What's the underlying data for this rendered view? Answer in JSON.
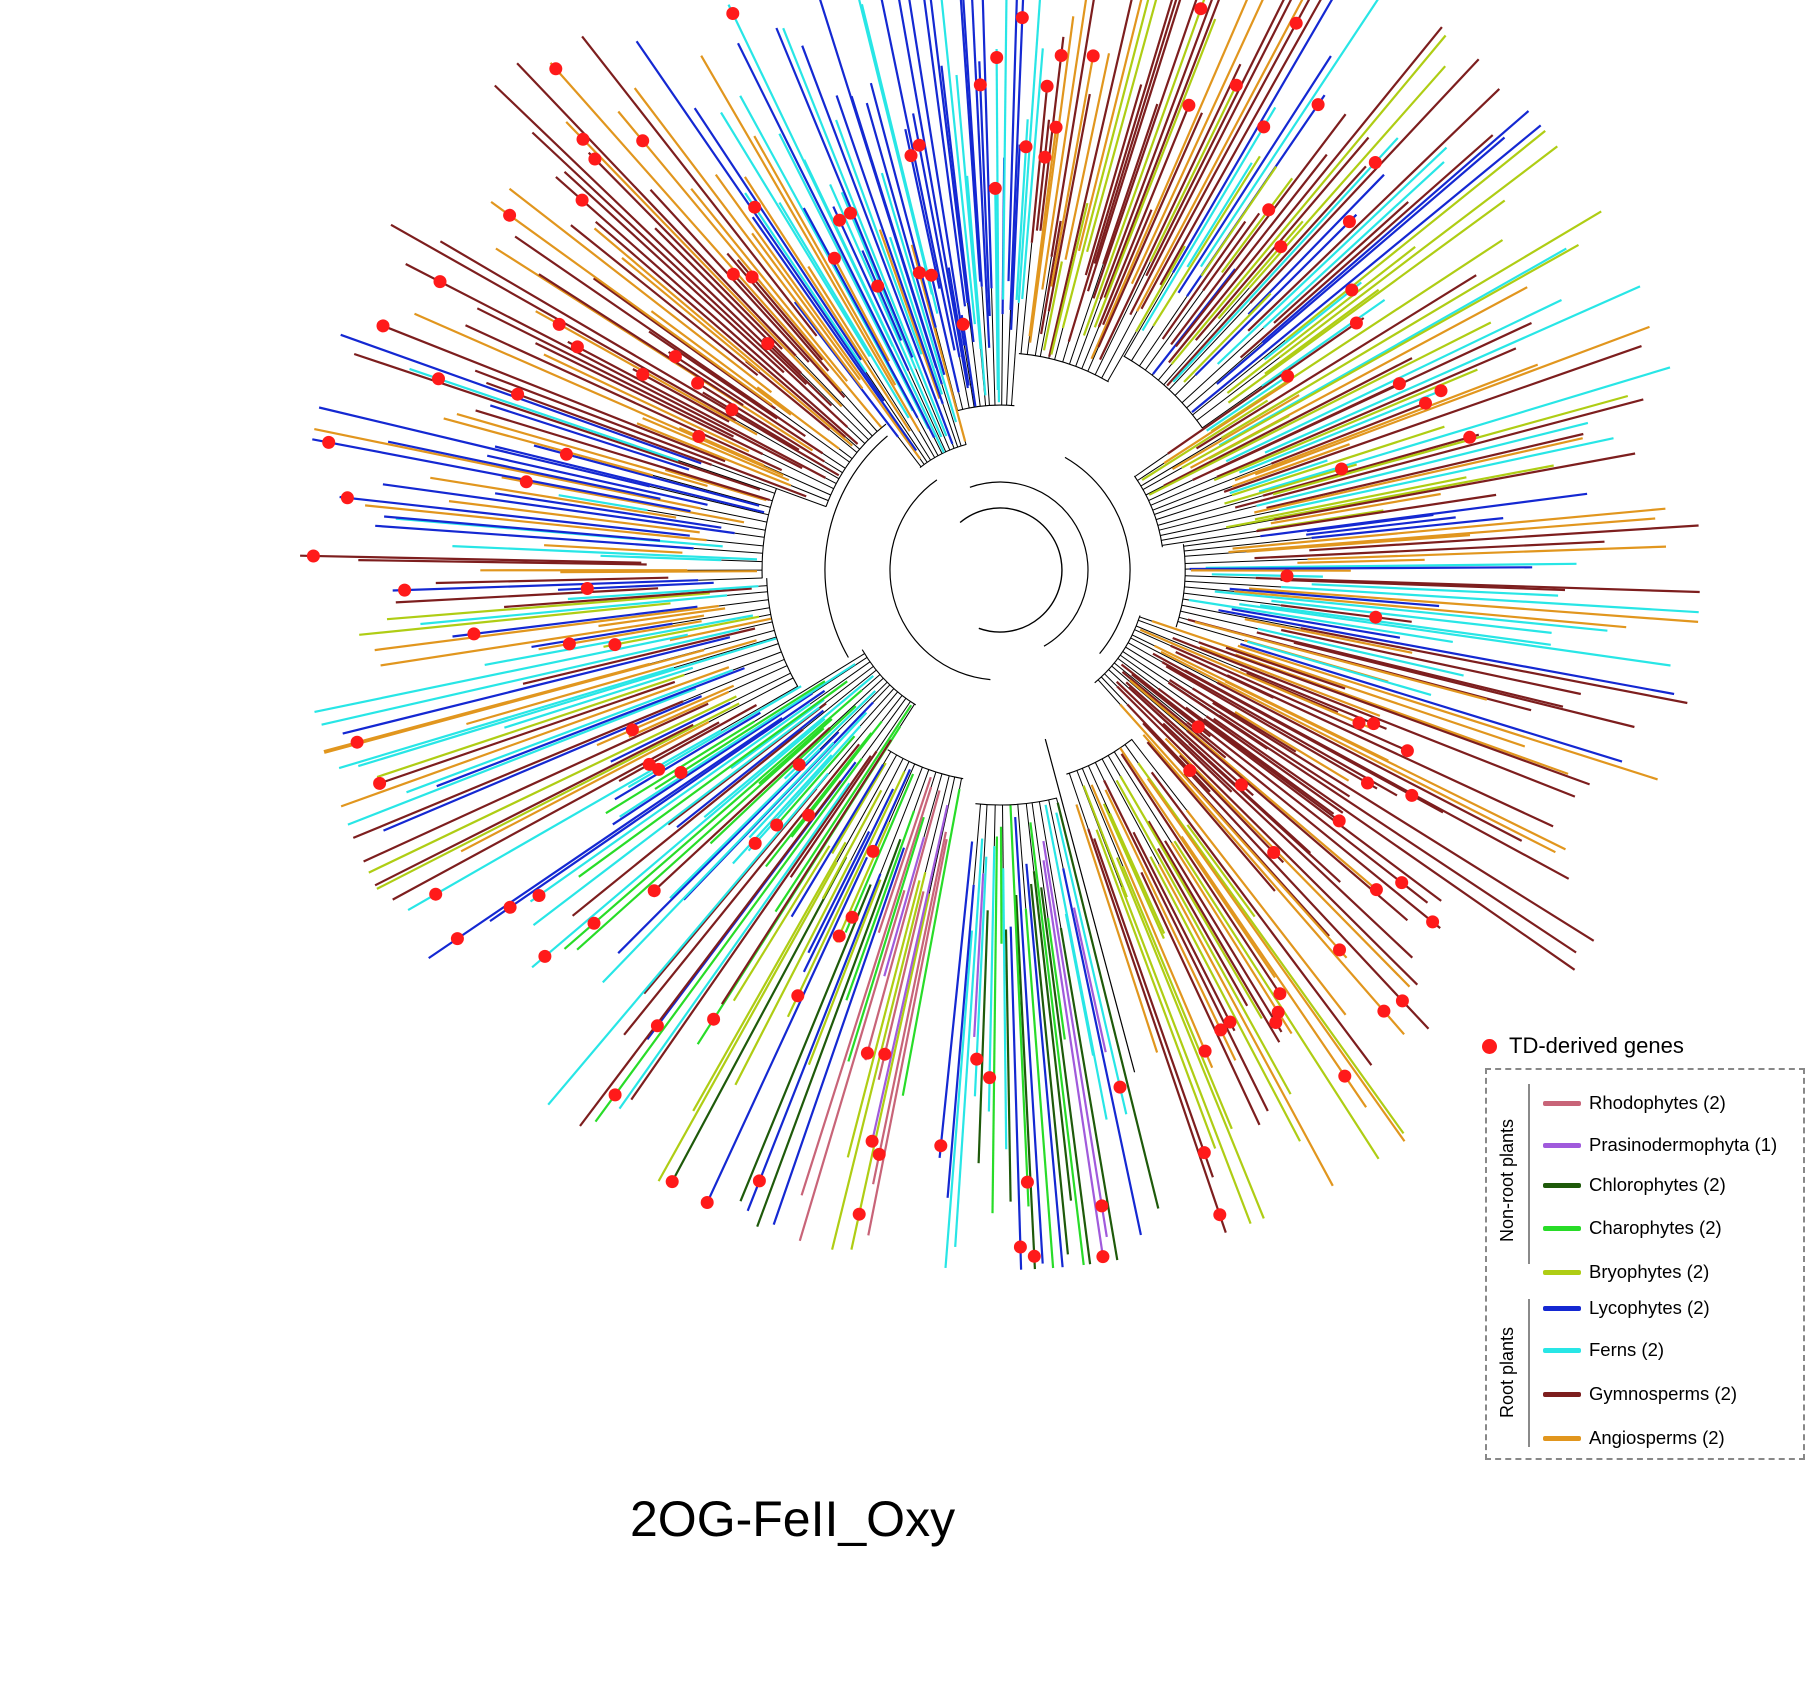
{
  "title": "2OG-FeII_Oxy",
  "legend": {
    "td_label": "TD-derived genes",
    "td_color": "#ff1a1a",
    "groups": [
      {
        "label": "Non-root plants",
        "items": [
          {
            "name": "Rhodophytes (2)",
            "color": "#c86478"
          },
          {
            "name": "Prasinodermophyta (1)",
            "color": "#a05adc"
          },
          {
            "name": "Chlorophytes (2)",
            "color": "#1e5a0a"
          },
          {
            "name": "Charophytes (2)",
            "color": "#28dc28"
          },
          {
            "name": "Bryophytes (2)",
            "color": "#afcd14"
          }
        ]
      },
      {
        "label": "Root plants",
        "items": [
          {
            "name": "Lycophytes (2)",
            "color": "#1428d2"
          },
          {
            "name": "Ferns (2)",
            "color": "#28e6e6"
          },
          {
            "name": "Gymnosperms (2)",
            "color": "#7d1e1e"
          },
          {
            "name": "Angiosperms (2)",
            "color": "#e1961e"
          }
        ]
      }
    ]
  }
}
